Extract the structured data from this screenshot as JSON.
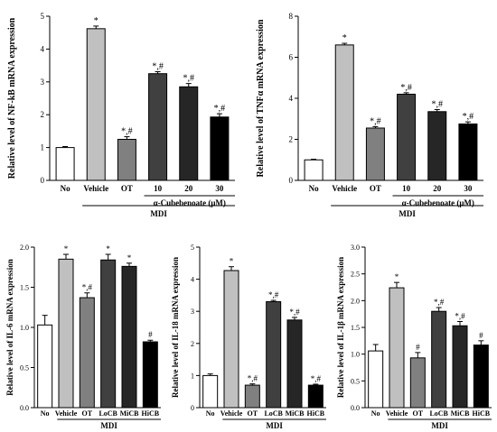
{
  "chart_data": [
    {
      "id": "nfkb",
      "type": "bar",
      "ylabel": "Relative level of NF-kB mRNA expression",
      "ylim": [
        0,
        5
      ],
      "yticks": [
        "0",
        "1",
        "2",
        "3",
        "4",
        "5"
      ],
      "categories": [
        "No",
        "Vehicle",
        "OT",
        "10",
        "20",
        "30"
      ],
      "values": [
        1.0,
        4.62,
        1.25,
        3.25,
        2.85,
        1.93
      ],
      "errors": [
        0.03,
        0.08,
        0.08,
        0.06,
        0.1,
        0.1
      ],
      "labels": [
        "",
        "*",
        "*,#",
        "*,#",
        "*,#",
        "*,#"
      ],
      "colors": [
        "#ffffff",
        "#c0c0c0",
        "#808080",
        "#404040",
        "#262626",
        "#000000"
      ],
      "group_label": "MDI",
      "subgroup_label": "α-Cubebenoate (μM)"
    },
    {
      "id": "tnfa",
      "type": "bar",
      "ylabel": "Relative level of TNFα mRNA expression",
      "ylim": [
        0,
        8
      ],
      "yticks": [
        "0",
        "2",
        "4",
        "6",
        "8"
      ],
      "categories": [
        "No",
        "Vehicle",
        "OT",
        "10",
        "20",
        "30"
      ],
      "values": [
        1.0,
        6.6,
        2.55,
        4.2,
        3.35,
        2.75
      ],
      "errors": [
        0.03,
        0.08,
        0.07,
        0.07,
        0.1,
        0.1
      ],
      "labels": [
        "",
        "*",
        "*,#",
        "*,#",
        "*,#",
        "*,#"
      ],
      "colors": [
        "#ffffff",
        "#c0c0c0",
        "#808080",
        "#404040",
        "#262626",
        "#000000"
      ],
      "group_label": "MDI",
      "subgroup_label": "α-Cubebenoate (μM)"
    },
    {
      "id": "il6",
      "type": "bar",
      "ylabel": "Relative level of IL-6 mRNA expression",
      "ylim": [
        0,
        2.0
      ],
      "yticks": [
        "0.0",
        "0.5",
        "1.0",
        "1.5",
        "2.0"
      ],
      "categories": [
        "No",
        "Vehicle",
        "OT",
        "LoCB",
        "MiCB",
        "HiCB"
      ],
      "values": [
        1.03,
        1.85,
        1.37,
        1.84,
        1.76,
        0.82
      ],
      "errors": [
        0.12,
        0.06,
        0.06,
        0.07,
        0.04,
        0.02
      ],
      "labels": [
        "",
        "*",
        "*,#",
        "*",
        "*",
        "#"
      ],
      "colors": [
        "#ffffff",
        "#c0c0c0",
        "#808080",
        "#404040",
        "#262626",
        "#000000"
      ],
      "group_label": "MDI",
      "subgroup_label": ""
    },
    {
      "id": "il18",
      "type": "bar",
      "ylabel": "Relative level of IL-18 mRNA expression",
      "ylim": [
        0,
        5
      ],
      "yticks": [
        "0",
        "1",
        "2",
        "3",
        "4",
        "5"
      ],
      "categories": [
        "No",
        "Vehicle",
        "OT",
        "LoCB",
        "MiCB",
        "HiCB"
      ],
      "values": [
        1.0,
        4.27,
        0.7,
        3.3,
        2.73,
        0.7
      ],
      "errors": [
        0.05,
        0.12,
        0.04,
        0.04,
        0.08,
        0.03
      ],
      "labels": [
        "",
        "*",
        "*,#",
        "*,#",
        "*,#",
        "*,#"
      ],
      "colors": [
        "#ffffff",
        "#c0c0c0",
        "#808080",
        "#404040",
        "#262626",
        "#000000"
      ],
      "group_label": "MDI",
      "subgroup_label": ""
    },
    {
      "id": "il1b",
      "type": "bar",
      "ylabel": "Relative level of IL-1β mRNA expression",
      "ylim": [
        0,
        3.0
      ],
      "yticks": [
        "0.0",
        "0.5",
        "1.0",
        "1.5",
        "2.0",
        "2.5",
        "3.0"
      ],
      "categories": [
        "No",
        "Vehicle",
        "OT",
        "LoCB",
        "MiCB",
        "HiCB"
      ],
      "values": [
        1.06,
        2.24,
        0.93,
        1.8,
        1.53,
        1.17
      ],
      "errors": [
        0.12,
        0.1,
        0.1,
        0.07,
        0.08,
        0.08
      ],
      "labels": [
        "",
        "*",
        "#",
        "*,#",
        "*,#",
        "#"
      ],
      "colors": [
        "#ffffff",
        "#c0c0c0",
        "#808080",
        "#404040",
        "#262626",
        "#000000"
      ],
      "group_label": "MDI",
      "subgroup_label": ""
    }
  ]
}
